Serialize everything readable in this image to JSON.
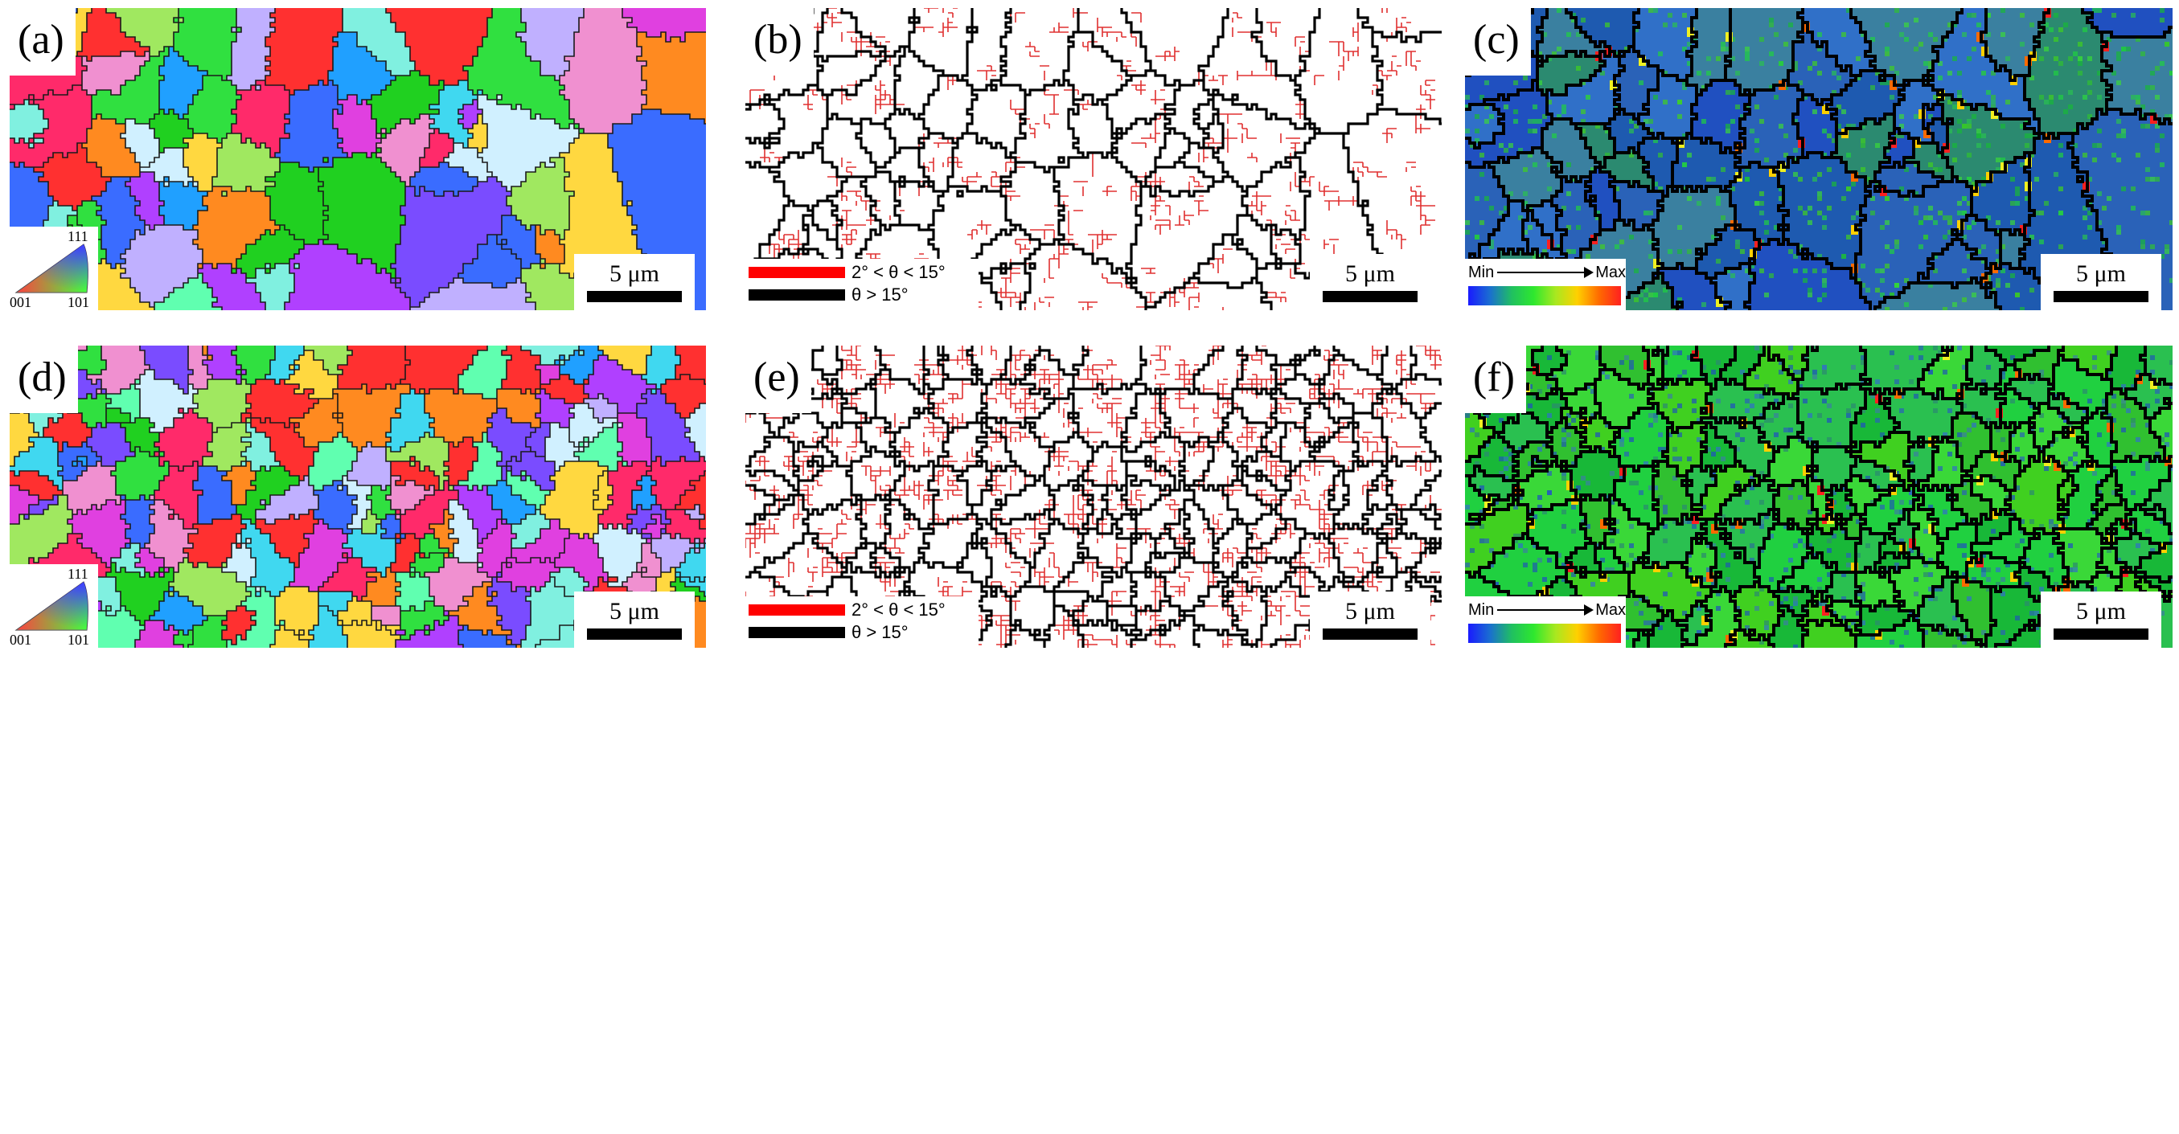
{
  "panels": [
    {
      "id": "a",
      "label": "(a)",
      "kind": "ipf",
      "grains": 70,
      "seed": 11,
      "scale_text": "5 μm",
      "ipf_key": {
        "top": "111",
        "left": "001",
        "right": "101"
      }
    },
    {
      "id": "b",
      "label": "(b)",
      "kind": "boundary",
      "grains": 70,
      "seed": 11,
      "lagb_density": 0.35,
      "scale_text": "5 μm",
      "legend": [
        {
          "color": "#ff0000",
          "text": "2° < θ < 15°"
        },
        {
          "color": "#000000",
          "text": "θ > 15°"
        }
      ]
    },
    {
      "id": "c",
      "label": "(c)",
      "kind": "kam",
      "grains": 70,
      "seed": 11,
      "base": "blue",
      "scale_text": "5 μm",
      "legend": {
        "min": "Min",
        "max": "Max"
      }
    },
    {
      "id": "d",
      "label": "(d)",
      "kind": "ipf",
      "grains": 170,
      "seed": 29,
      "scale_text": "5 μm",
      "ipf_key": {
        "top": "111",
        "left": "001",
        "right": "101"
      }
    },
    {
      "id": "e",
      "label": "(e)",
      "kind": "boundary",
      "grains": 170,
      "seed": 29,
      "lagb_density": 0.85,
      "scale_text": "5 μm",
      "legend": [
        {
          "color": "#ff0000",
          "text": "2° < θ < 15°"
        },
        {
          "color": "#000000",
          "text": "θ > 15°"
        }
      ]
    },
    {
      "id": "f",
      "label": "(f)",
      "kind": "kam",
      "grains": 170,
      "seed": 29,
      "base": "green",
      "scale_text": "5 μm",
      "legend": {
        "min": "Min",
        "max": "Max"
      }
    }
  ],
  "colors": {
    "ipf_palette": [
      "#ff2a6a",
      "#e040e0",
      "#b040ff",
      "#7a4cff",
      "#3a6cff",
      "#20a0ff",
      "#40d8f0",
      "#80f0e0",
      "#30e040",
      "#20d020",
      "#a0e860",
      "#ffd840",
      "#ff8a20",
      "#ff3030",
      "#c0b0ff",
      "#f090d0",
      "#60ffb0",
      "#d0f0ff"
    ],
    "kam_blue": [
      "#2050c0",
      "#2a62b8",
      "#3070c8",
      "#1e5ab0",
      "#3a80a0",
      "#2b8a70"
    ],
    "kam_green": [
      "#20d040",
      "#30c030",
      "#18b838",
      "#40d020",
      "#2ac050",
      "#3ad838"
    ],
    "kam_hot": [
      "#ffd000",
      "#ff6a00",
      "#ff2020",
      "#f0f020"
    ],
    "hagb": "#000000",
    "lagb": "#e03030"
  }
}
